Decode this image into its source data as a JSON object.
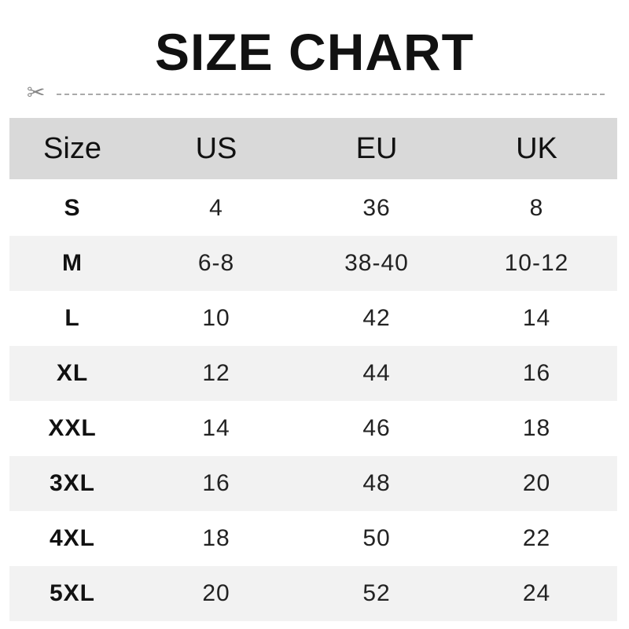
{
  "title": "SIZE CHART",
  "icons": {
    "scissors": "scissors-icon"
  },
  "colors": {
    "header_bg": "#d9d9d9",
    "alt_row_bg": "#f2f2f2"
  },
  "table": {
    "headers": [
      "Size",
      "US",
      "EU",
      "UK"
    ],
    "rows": [
      [
        "S",
        "4",
        "36",
        "8"
      ],
      [
        "M",
        "6-8",
        "38-40",
        "10-12"
      ],
      [
        "L",
        "10",
        "42",
        "14"
      ],
      [
        "XL",
        "12",
        "44",
        "16"
      ],
      [
        "XXL",
        "14",
        "46",
        "18"
      ],
      [
        "3XL",
        "16",
        "48",
        "20"
      ],
      [
        "4XL",
        "18",
        "50",
        "22"
      ],
      [
        "5XL",
        "20",
        "52",
        "24"
      ]
    ]
  }
}
